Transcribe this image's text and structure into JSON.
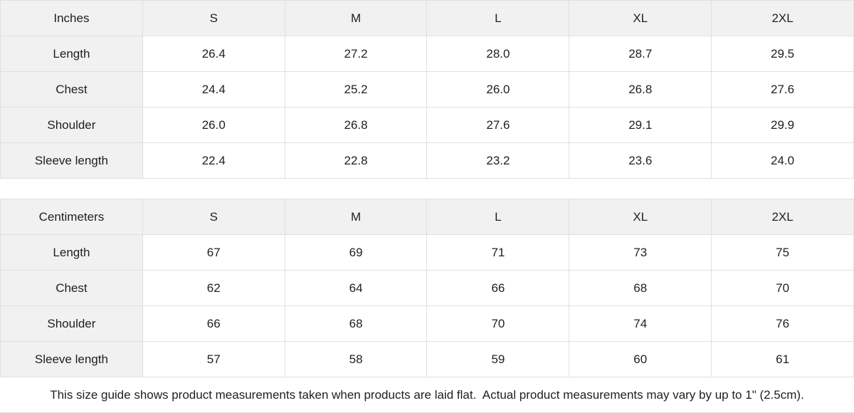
{
  "colors": {
    "header_bg": "#f1f1f1",
    "border": "#e0e0e0",
    "text": "#1f1f1f",
    "cell_bg": "#ffffff"
  },
  "tables": [
    {
      "unit_label": "Inches",
      "sizes": [
        "S",
        "M",
        "L",
        "XL",
        "2XL"
      ],
      "rows": [
        {
          "label": "Length",
          "values": [
            "26.4",
            "27.2",
            "28.0",
            "28.7",
            "29.5"
          ]
        },
        {
          "label": "Chest",
          "values": [
            "24.4",
            "25.2",
            "26.0",
            "26.8",
            "27.6"
          ]
        },
        {
          "label": "Shoulder",
          "values": [
            "26.0",
            "26.8",
            "27.6",
            "29.1",
            "29.9"
          ]
        },
        {
          "label": "Sleeve length",
          "values": [
            "22.4",
            "22.8",
            "23.2",
            "23.6",
            "24.0"
          ]
        }
      ]
    },
    {
      "unit_label": "Centimeters",
      "sizes": [
        "S",
        "M",
        "L",
        "XL",
        "2XL"
      ],
      "rows": [
        {
          "label": "Length",
          "values": [
            "67",
            "69",
            "71",
            "73",
            "75"
          ]
        },
        {
          "label": "Chest",
          "values": [
            "62",
            "64",
            "66",
            "68",
            "70"
          ]
        },
        {
          "label": "Shoulder",
          "values": [
            "66",
            "68",
            "70",
            "74",
            "76"
          ]
        },
        {
          "label": "Sleeve length",
          "values": [
            "57",
            "58",
            "59",
            "60",
            "61"
          ]
        }
      ]
    }
  ],
  "footer": {
    "note": "This size guide shows product measurements taken when products are laid flat.  Actual product measurements may vary by up to 1\" (2.5cm)."
  }
}
